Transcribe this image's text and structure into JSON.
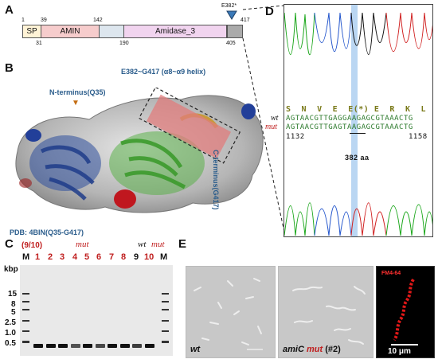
{
  "panelA": {
    "label": "A",
    "positions": {
      "p1": "1",
      "p31": "31",
      "p39": "39",
      "p142": "142",
      "p190": "190",
      "p405": "405",
      "p417": "417"
    },
    "domains": {
      "sp": "SP",
      "amin": "AMIN",
      "amidase": "Amidase_3"
    },
    "mutation_marker": "E382*"
  },
  "panelB": {
    "label": "B",
    "n_terminus": "N-terminus(Q35)",
    "helix_label": "E382~G417 (α8~α9 helix)",
    "c_terminus": "C-terminus(G417)",
    "pdb": "PDB: 4BIN(Q35-G417)"
  },
  "panelC": {
    "label": "C",
    "count": "(9/10)",
    "mut_top": "mut",
    "wt_top": "wt",
    "mut_top2": "mut",
    "kbp": "kbp",
    "lanes": [
      "M",
      "1",
      "2",
      "3",
      "4",
      "5",
      "6",
      "7",
      "8",
      "9",
      "10",
      "M"
    ],
    "ladder_labels": [
      "15",
      "8",
      "5",
      "2.5",
      "1.0",
      "0.5"
    ]
  },
  "panelD": {
    "label": "D",
    "aa_row": "S  N  V  E  E(*) E  R  K  L",
    "wt_label": "wt",
    "mut_label": "mut",
    "wt_seq": "AGTAACGTTGAGGAAGAGCGTAAACTG",
    "mut_seq": "AGTAACGTTGAGTAAGAGCGTAAACTG",
    "pos_start": "1132",
    "pos_end": "1158",
    "aa_pos": "382 aa"
  },
  "panelE": {
    "label": "E",
    "wt_caption": "wt",
    "mut_caption_a": "amiC",
    "mut_caption_b": "mut",
    "mut_caption_c": "(#2)",
    "scale": "10 μm",
    "stain": "FM4-64"
  }
}
